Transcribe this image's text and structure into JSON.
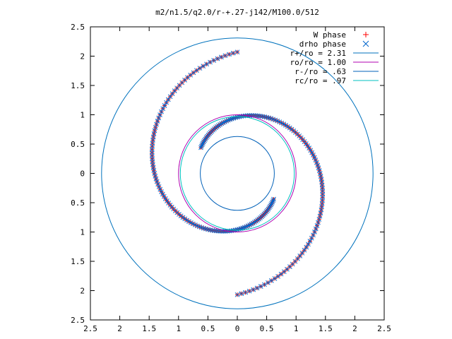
{
  "chart_data": {
    "type": "scatter",
    "title": "m2/n1.5/q2.0/r-+.27-j142/M100.0/512",
    "xlabel": "",
    "ylabel": "",
    "xlim": [
      -2.5,
      2.5
    ],
    "ylim": [
      -2.5,
      2.5
    ],
    "x_ticks": [
      -2.5,
      -2,
      -1.5,
      -1,
      -0.5,
      0,
      0.5,
      1,
      1.5,
      2,
      2.5
    ],
    "x_tick_labels": [
      "2.5",
      "2",
      "1.5",
      "1",
      "0.5",
      "0",
      "0.5",
      "1",
      "1.5",
      "2",
      "2.5"
    ],
    "y_ticks": [
      2.5,
      2,
      1.5,
      1,
      0.5,
      0,
      -0.5,
      -1,
      -1.5,
      -2,
      -2.5
    ],
    "y_tick_labels": [
      "2.5",
      "2",
      "1.5",
      "1",
      "0.5",
      "0",
      "0.5",
      "1",
      "1.5",
      "2",
      "2.5"
    ],
    "grid": false,
    "legend_position": "top-right",
    "series": [
      {
        "name": "W phase",
        "marker": "plus",
        "color": "#ff0000",
        "branches": [
          {
            "start": [
              0.0,
              2.07
            ],
            "dir": 1,
            "a": 0.9,
            "b": 1.17,
            "from": 0.0,
            "to": 3.5
          },
          {
            "start": [
              0.0,
              -2.07
            ],
            "dir": 1,
            "a": 0.9,
            "b": 1.17,
            "from": 0.0,
            "to": 3.5
          }
        ]
      },
      {
        "name": "drho phase",
        "marker": "cross",
        "color": "#0066cc",
        "branches": [
          {
            "start": [
              0.0,
              2.07
            ],
            "dir": 1,
            "a": 0.9,
            "b": 1.17,
            "from": 0.0,
            "to": 3.5
          },
          {
            "start": [
              0.0,
              -2.07
            ],
            "dir": 1,
            "a": 0.9,
            "b": 1.17,
            "from": 0.0,
            "to": 3.5
          }
        ]
      }
    ],
    "circles": [
      {
        "label": "r+/ro = 2.31",
        "radius": 2.31,
        "color": "#0072bd"
      },
      {
        "label": "ro/ro = 1.00",
        "radius": 1.0,
        "color": "#b000b0"
      },
      {
        "label": "r-/ro = .63",
        "radius": 0.63,
        "color": "#0060b8"
      },
      {
        "label": "rc/ro = .97",
        "radius": 0.97,
        "color": "#00c0c0"
      }
    ]
  }
}
